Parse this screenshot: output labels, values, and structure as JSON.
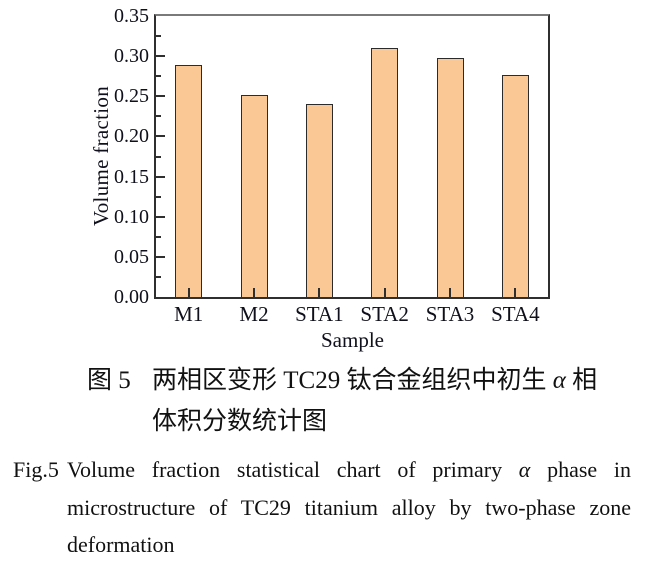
{
  "chart_data": {
    "type": "bar",
    "title": "",
    "categories": [
      "M1",
      "M2",
      "STA1",
      "STA2",
      "STA3",
      "STA4"
    ],
    "values": [
      0.289,
      0.252,
      0.24,
      0.31,
      0.298,
      0.277
    ],
    "xlabel": "Sample",
    "ylabel": "Volume fraction",
    "ylim": [
      0,
      0.35
    ],
    "ytick_step": 0.05,
    "yminor_step": 0.025,
    "ytick_labels": [
      "0.00",
      "0.05",
      "0.10",
      "0.15",
      "0.20",
      "0.25",
      "0.30",
      "0.35"
    ],
    "grid": false,
    "legend": "none",
    "bar_color": "#fac894",
    "bar_border_color": "#2b2b2b",
    "axis_color": "#2f2f2f"
  },
  "captions": {
    "cn": {
      "label": "图 5",
      "line1_pre": "两相区变形 TC29 钛合金组织中初生 ",
      "alpha": "α",
      "line1_post": " 相",
      "line2": "体积分数统计图"
    },
    "en": {
      "label": "Fig.5",
      "line1_pre": "Volume fraction statistical chart of primary ",
      "alpha": "α",
      "line1_post": " phase in",
      "line2": "microstructure of TC29 titanium alloy by two-phase zone",
      "line3": "deformation"
    }
  }
}
